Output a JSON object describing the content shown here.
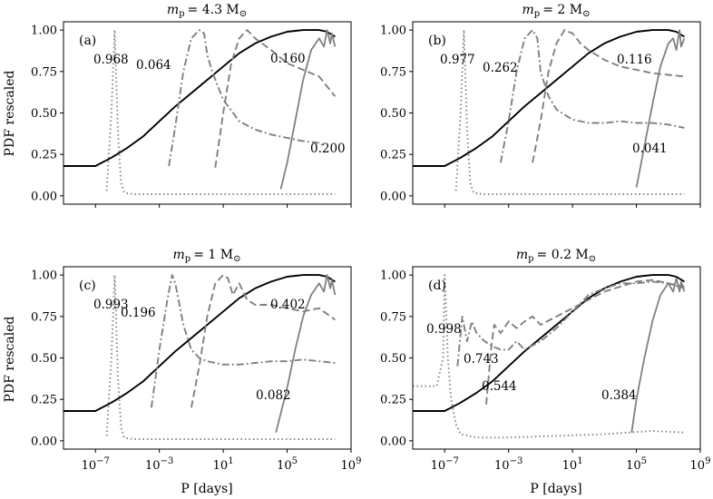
{
  "figure": {
    "x_axis_label": "P [days]",
    "y_axis_label": "PDF rescaled"
  },
  "chart_data": [
    {
      "type": "line",
      "panel": "a",
      "title": "m_p = 4.3 M_sun",
      "title_parts": {
        "var": "m",
        "sub": "p",
        "value": "= 4.3 M",
        "symbol": "⊙"
      },
      "panel_label": "(a)",
      "xlabel": "",
      "ylabel": "PDF rescaled",
      "xscale": "log",
      "xlim_log10": [
        -9,
        9
      ],
      "ylim": [
        -0.05,
        1.05
      ],
      "x_ticks_log10": [
        -7,
        -3,
        1,
        5,
        9
      ],
      "x_tick_labels": [
        "",
        "",
        "",
        "",
        ""
      ],
      "y_ticks": [
        0.0,
        0.25,
        0.5,
        0.75,
        1.0
      ],
      "y_tick_labels": [
        "0.00",
        "0.25",
        "0.50",
        "0.75",
        "1.00"
      ],
      "series": [
        {
          "name": "black",
          "style": "solid-black",
          "log10_x": [
            -9,
            -7,
            -6,
            -5,
            -4,
            -3,
            -2,
            -1,
            0,
            1,
            2,
            3,
            4,
            5,
            6,
            7,
            7.5,
            8
          ],
          "values": [
            0.18,
            0.18,
            0.23,
            0.29,
            0.36,
            0.45,
            0.54,
            0.62,
            0.7,
            0.78,
            0.86,
            0.92,
            0.96,
            0.99,
            1.0,
            1.0,
            0.99,
            0.96
          ]
        },
        {
          "name": "dotted",
          "style": "dotted",
          "fraction_label": "0.968",
          "log10_x": [
            -6.3,
            -6.0,
            -5.8,
            -5.6,
            -5.4,
            -5.2,
            -5.0,
            -4.5,
            -3,
            0,
            3,
            6,
            8
          ],
          "values": [
            0.03,
            0.5,
            1.0,
            0.4,
            0.08,
            0.02,
            0.015,
            0.01,
            0.01,
            0.01,
            0.01,
            0.01,
            0.01
          ]
        },
        {
          "name": "dashdot",
          "style": "dashdot",
          "fraction_label": "0.064",
          "log10_x": [
            -2.4,
            -2.0,
            -1.5,
            -1.0,
            -0.5,
            -0.2,
            0.0,
            0.3,
            1,
            2,
            3,
            4,
            5,
            6,
            7,
            7.3
          ],
          "values": [
            0.18,
            0.42,
            0.75,
            0.95,
            1.0,
            0.98,
            0.85,
            0.75,
            0.58,
            0.45,
            0.4,
            0.37,
            0.35,
            0.33,
            0.32,
            0.3
          ]
        },
        {
          "name": "dashed",
          "style": "dashed",
          "fraction_label": "0.160",
          "log10_x": [
            0.5,
            1,
            1.5,
            2,
            2.5,
            3,
            4,
            5,
            6,
            7,
            7.5,
            8
          ],
          "values": [
            0.17,
            0.5,
            0.8,
            0.95,
            1.0,
            0.95,
            0.88,
            0.8,
            0.76,
            0.72,
            0.66,
            0.6
          ]
        },
        {
          "name": "solid-gray",
          "style": "solid-gray",
          "fraction_label": "0.200",
          "log10_x": [
            4.6,
            5,
            5.5,
            6,
            6.5,
            7,
            7.3,
            7.5,
            7.7,
            7.8,
            8
          ],
          "values": [
            0.04,
            0.2,
            0.45,
            0.7,
            0.88,
            0.95,
            0.9,
            1.0,
            0.92,
            0.98,
            0.9
          ]
        }
      ]
    },
    {
      "type": "line",
      "panel": "b",
      "title": "m_p = 2 M_sun",
      "title_parts": {
        "var": "m",
        "sub": "p",
        "value": "= 2 M",
        "symbol": "⊙"
      },
      "panel_label": "(b)",
      "xlabel": "",
      "ylabel": "",
      "xscale": "log",
      "xlim_log10": [
        -9,
        9
      ],
      "ylim": [
        -0.05,
        1.05
      ],
      "x_ticks_log10": [
        -7,
        -3,
        1,
        5,
        9
      ],
      "x_tick_labels": [
        "",
        "",
        "",
        "",
        ""
      ],
      "y_ticks": [
        0.0,
        0.25,
        0.5,
        0.75,
        1.0
      ],
      "y_tick_labels": [
        "0.00",
        "0.25",
        "0.50",
        "0.75",
        "1.00"
      ],
      "series": [
        {
          "name": "black",
          "style": "solid-black",
          "log10_x": [
            -9,
            -7,
            -6,
            -5,
            -4,
            -3,
            -2,
            -1,
            0,
            1,
            2,
            3,
            4,
            5,
            6,
            7,
            7.5,
            8
          ],
          "values": [
            0.18,
            0.18,
            0.23,
            0.29,
            0.36,
            0.45,
            0.54,
            0.62,
            0.7,
            0.78,
            0.86,
            0.92,
            0.96,
            0.99,
            1.0,
            1.0,
            0.99,
            0.96
          ]
        },
        {
          "name": "dotted",
          "style": "dotted",
          "fraction_label": "0.977",
          "log10_x": [
            -6.3,
            -6.0,
            -5.8,
            -5.6,
            -5.4,
            -5.2,
            -5.0,
            -4.5,
            -3,
            0,
            3,
            6,
            8
          ],
          "values": [
            0.03,
            0.5,
            1.0,
            0.4,
            0.08,
            0.02,
            0.015,
            0.01,
            0.01,
            0.01,
            0.01,
            0.01,
            0.01
          ]
        },
        {
          "name": "dashdot",
          "style": "dashdot",
          "fraction_label": "0.262",
          "log10_x": [
            -3.5,
            -3,
            -2.5,
            -2,
            -1.5,
            -1.2,
            -1,
            -0.5,
            0,
            1,
            2,
            3,
            4,
            5,
            6,
            7,
            8
          ],
          "values": [
            0.2,
            0.45,
            0.75,
            0.95,
            1.0,
            0.95,
            0.75,
            0.6,
            0.52,
            0.46,
            0.44,
            0.44,
            0.45,
            0.44,
            0.44,
            0.43,
            0.41
          ]
        },
        {
          "name": "dashed",
          "style": "dashed",
          "fraction_label": "0.116",
          "log10_x": [
            -1.5,
            -1,
            -0.5,
            0,
            0.5,
            1,
            1.5,
            2,
            3,
            4,
            5,
            6,
            7,
            8
          ],
          "values": [
            0.2,
            0.45,
            0.75,
            0.92,
            1.0,
            0.98,
            0.92,
            0.88,
            0.82,
            0.78,
            0.76,
            0.74,
            0.73,
            0.72
          ]
        },
        {
          "name": "solid-gray",
          "style": "solid-gray",
          "fraction_label": "0.041",
          "log10_x": [
            5.0,
            5.5,
            6,
            6.5,
            7,
            7.3,
            7.5,
            7.7,
            7.8,
            8
          ],
          "values": [
            0.05,
            0.3,
            0.55,
            0.78,
            0.92,
            0.95,
            0.88,
            1.0,
            0.9,
            0.95
          ]
        }
      ]
    },
    {
      "type": "line",
      "panel": "c",
      "title": "m_p = 1 M_sun",
      "title_parts": {
        "var": "m",
        "sub": "p",
        "value": "= 1 M",
        "symbol": "⊙"
      },
      "panel_label": "(c)",
      "xlabel": "P [days]",
      "ylabel": "PDF rescaled",
      "xscale": "log",
      "xlim_log10": [
        -9,
        9
      ],
      "ylim": [
        -0.05,
        1.05
      ],
      "x_ticks_log10": [
        -7,
        -3,
        1,
        5,
        9
      ],
      "x_tick_labels": [
        {
          "base": "10",
          "exp": "−7"
        },
        {
          "base": "10",
          "exp": "−3"
        },
        {
          "base": "10",
          "exp": "1"
        },
        {
          "base": "10",
          "exp": "5"
        },
        {
          "base": "10",
          "exp": "9"
        }
      ],
      "y_ticks": [
        0.0,
        0.25,
        0.5,
        0.75,
        1.0
      ],
      "y_tick_labels": [
        "0.00",
        "0.25",
        "0.50",
        "0.75",
        "1.00"
      ],
      "series": [
        {
          "name": "black",
          "style": "solid-black",
          "log10_x": [
            -9,
            -7,
            -6,
            -5,
            -4,
            -3,
            -2,
            -1,
            0,
            1,
            2,
            3,
            4,
            5,
            6,
            7,
            7.5,
            8
          ],
          "values": [
            0.18,
            0.18,
            0.23,
            0.29,
            0.36,
            0.45,
            0.54,
            0.62,
            0.7,
            0.78,
            0.86,
            0.92,
            0.96,
            0.99,
            1.0,
            1.0,
            0.99,
            0.96
          ]
        },
        {
          "name": "dotted",
          "style": "dotted",
          "fraction_label": "0.993",
          "log10_x": [
            -6.3,
            -6.0,
            -5.8,
            -5.6,
            -5.4,
            -5.2,
            -5.0,
            -4.5,
            -3,
            0,
            3,
            6,
            8
          ],
          "values": [
            0.03,
            0.5,
            1.0,
            0.4,
            0.08,
            0.02,
            0.015,
            0.01,
            0.01,
            0.01,
            0.01,
            0.01,
            0.01
          ]
        },
        {
          "name": "dashdot",
          "style": "dashdot",
          "fraction_label": "0.196",
          "log10_x": [
            -3.5,
            -3,
            -2.5,
            -2.2,
            -2,
            -1.5,
            -1,
            -0.5,
            0,
            1,
            2,
            3,
            4,
            5,
            6,
            7,
            8
          ],
          "values": [
            0.2,
            0.55,
            0.85,
            1.0,
            0.95,
            0.7,
            0.55,
            0.5,
            0.48,
            0.46,
            0.46,
            0.47,
            0.48,
            0.48,
            0.49,
            0.48,
            0.47
          ]
        },
        {
          "name": "dashed",
          "style": "dashed",
          "fraction_label": "0.402",
          "log10_x": [
            -1.0,
            -0.5,
            0,
            0.5,
            1,
            1.3,
            1.6,
            2,
            2.5,
            3,
            4,
            5,
            6,
            7,
            8
          ],
          "values": [
            0.2,
            0.45,
            0.75,
            0.95,
            1.0,
            0.98,
            0.88,
            0.95,
            0.85,
            0.82,
            0.82,
            0.8,
            0.78,
            0.8,
            0.73
          ]
        },
        {
          "name": "solid-gray",
          "style": "solid-gray",
          "fraction_label": "0.082",
          "log10_x": [
            4.3,
            5,
            5.5,
            6,
            6.5,
            7,
            7.3,
            7.5,
            7.7,
            7.8,
            8
          ],
          "values": [
            0.05,
            0.32,
            0.55,
            0.75,
            0.88,
            0.95,
            0.9,
            1.0,
            0.92,
            0.97,
            0.88
          ]
        }
      ]
    },
    {
      "type": "line",
      "panel": "d",
      "title": "m_p = 0.2 M_sun",
      "title_parts": {
        "var": "m",
        "sub": "p",
        "value": "= 0.2 M",
        "symbol": "⊙"
      },
      "panel_label": "(d)",
      "xlabel": "P [days]",
      "ylabel": "",
      "xscale": "log",
      "xlim_log10": [
        -9,
        9
      ],
      "ylim": [
        -0.05,
        1.05
      ],
      "x_ticks_log10": [
        -7,
        -3,
        1,
        5,
        9
      ],
      "x_tick_labels": [
        {
          "base": "10",
          "exp": "−7"
        },
        {
          "base": "10",
          "exp": "−3"
        },
        {
          "base": "10",
          "exp": "1"
        },
        {
          "base": "10",
          "exp": "5"
        },
        {
          "base": "10",
          "exp": "9"
        }
      ],
      "y_ticks": [
        0.0,
        0.25,
        0.5,
        0.75,
        1.0
      ],
      "y_tick_labels": [
        "0.00",
        "0.25",
        "0.50",
        "0.75",
        "1.00"
      ],
      "series": [
        {
          "name": "black",
          "style": "solid-black",
          "log10_x": [
            -9,
            -7,
            -6,
            -5,
            -4,
            -3,
            -2,
            -1,
            0,
            1,
            2,
            3,
            4,
            5,
            6,
            7,
            7.5,
            8
          ],
          "values": [
            0.18,
            0.18,
            0.23,
            0.29,
            0.36,
            0.45,
            0.54,
            0.62,
            0.7,
            0.78,
            0.86,
            0.92,
            0.96,
            0.99,
            1.0,
            1.0,
            0.99,
            0.96
          ]
        },
        {
          "name": "dotted",
          "style": "dotted",
          "fraction_label": "0.998",
          "log10_x": [
            -9,
            -7.5,
            -7.1,
            -7.0,
            -6.9,
            -6.8,
            -6.6,
            -6.3,
            -6,
            -5,
            -3,
            0,
            3,
            6,
            8
          ],
          "values": [
            0.33,
            0.33,
            0.5,
            1.0,
            0.75,
            0.5,
            0.25,
            0.1,
            0.04,
            0.02,
            0.02,
            0.03,
            0.04,
            0.06,
            0.05
          ]
        },
        {
          "name": "dashdot",
          "style": "dashdot",
          "fraction_label": "0.743",
          "log10_x": [
            -6.2,
            -5.9,
            -5.6,
            -5.3,
            -5,
            -4.5,
            -4,
            -3.5,
            -3,
            -2.5,
            -2,
            -1,
            0,
            1,
            2,
            3,
            4,
            5,
            6,
            7,
            8
          ],
          "values": [
            0.45,
            0.75,
            0.6,
            0.72,
            0.65,
            0.6,
            0.57,
            0.55,
            0.55,
            0.6,
            0.55,
            0.6,
            0.68,
            0.78,
            0.88,
            0.92,
            0.95,
            0.95,
            0.96,
            0.95,
            0.92
          ]
        },
        {
          "name": "dashed",
          "style": "dashed",
          "fraction_label": "0.544",
          "log10_x": [
            -4.4,
            -4.1,
            -3.9,
            -3.5,
            -3.0,
            -2.5,
            -2,
            -1.5,
            -1,
            0,
            1,
            2,
            3,
            4,
            5,
            6,
            7,
            8
          ],
          "values": [
            0.22,
            0.55,
            0.7,
            0.65,
            0.72,
            0.68,
            0.72,
            0.75,
            0.7,
            0.75,
            0.8,
            0.85,
            0.9,
            0.93,
            0.96,
            0.97,
            0.95,
            0.93
          ]
        },
        {
          "name": "solid-gray",
          "style": "solid-gray",
          "fraction_label": "0.384",
          "log10_x": [
            4.7,
            5,
            5.5,
            6,
            6.5,
            7,
            7.3,
            7.5,
            7.7,
            7.8,
            8
          ],
          "values": [
            0.05,
            0.25,
            0.5,
            0.72,
            0.88,
            0.95,
            0.9,
            0.98,
            0.9,
            0.96,
            0.9
          ]
        }
      ]
    }
  ]
}
